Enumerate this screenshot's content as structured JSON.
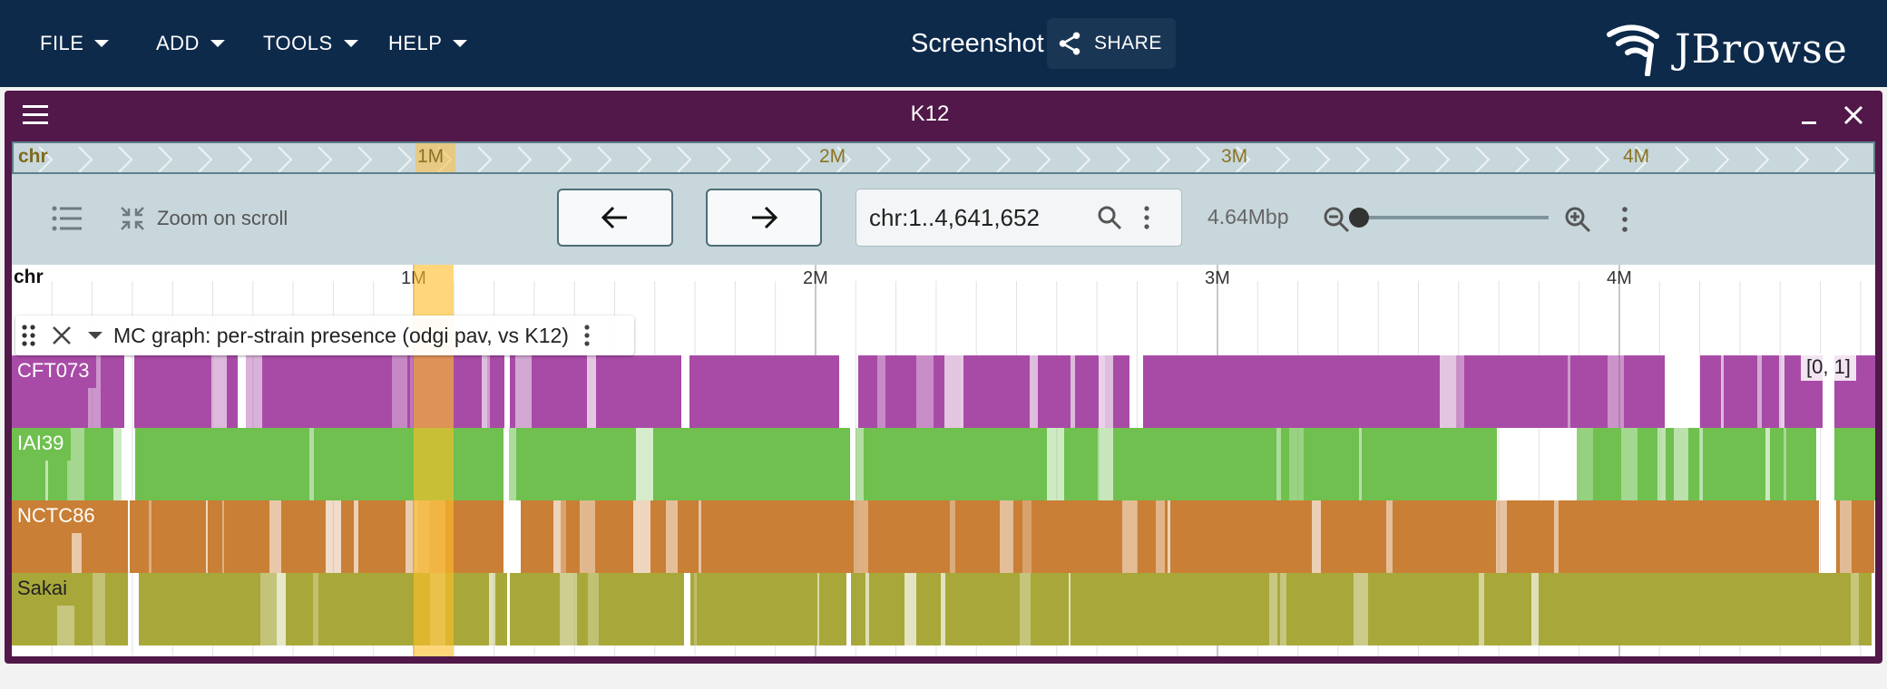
{
  "header": {
    "menus": [
      "FILE",
      "ADD",
      "TOOLS",
      "HELP"
    ],
    "title": "Screenshot",
    "share_label": "SHARE",
    "logo_text": "JBrowse"
  },
  "view": {
    "title": "K12",
    "overview": {
      "refname": "chr",
      "ticks": [
        {
          "label": "1M",
          "highlighted": true
        },
        {
          "label": "2M"
        },
        {
          "label": "3M"
        },
        {
          "label": "4M"
        }
      ]
    },
    "toolbar": {
      "zoom_on_scroll_label": "Zoom on scroll",
      "location": "chr:1..4,641,652",
      "bp_label": "4.64Mbp",
      "zoom_level": 0.0
    },
    "ruler": {
      "refname": "chr",
      "ticks": [
        "1M",
        "2M",
        "3M",
        "4M"
      ]
    },
    "highlight": {
      "start_bp": 1000000,
      "end_bp": 1100000
    },
    "track": {
      "name": "MC graph: per-strain presence (odgi pav, vs K12)",
      "range_label": "[0, 1]",
      "samples": [
        {
          "name": "CFT073",
          "color": "#a84ba6"
        },
        {
          "name": "IAI39",
          "color": "#6fc04f"
        },
        {
          "name": "NCTC86",
          "color": "#c97f35"
        },
        {
          "name": "Sakai",
          "color": "#a8a83a"
        }
      ]
    }
  },
  "colors": {
    "appbar": "#0d2a4b",
    "view_frame": "#511849",
    "overview_bg": "#c8d7dc"
  }
}
